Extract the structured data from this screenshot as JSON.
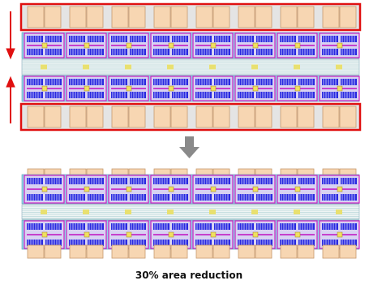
{
  "caption": "30% area reduction"
}
